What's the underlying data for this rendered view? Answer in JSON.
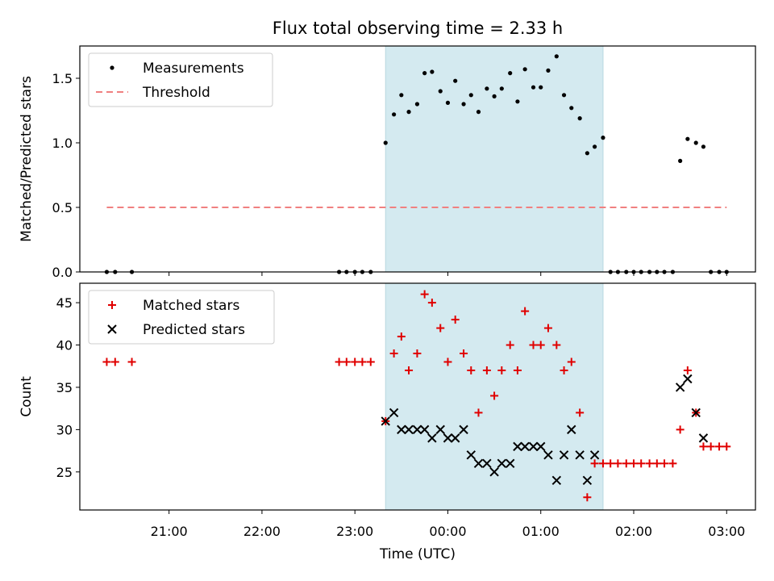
{
  "chart_data": {
    "title": "Flux total observing time = 2.33 h",
    "xlabel": "Time (UTC)",
    "x_ticks": [
      "21:00",
      "22:00",
      "23:00",
      "00:00",
      "01:00",
      "02:00",
      "03:00"
    ],
    "x_tick_hours": [
      21,
      22,
      23,
      24,
      25,
      26,
      27
    ],
    "xlim_hours": [
      20.04,
      27.31
    ],
    "shaded_span_hours": [
      23.33,
      25.67
    ],
    "shade_color": "#d4eaf0",
    "panels": [
      {
        "type": "scatter",
        "ylabel": "Matched/Predicted stars",
        "ylim": [
          0,
          1.75
        ],
        "y_ticks": [
          0.0,
          0.5,
          1.0,
          1.5
        ],
        "y_tick_labels": [
          "0.0",
          "0.5",
          "1.0",
          "1.5"
        ],
        "legend": "top-left",
        "series": [
          {
            "name": "Measurements",
            "marker": "dot",
            "color": "#000000",
            "x": [
              20.33,
              20.42,
              20.6,
              22.83,
              22.91,
              23.0,
              23.08,
              23.17,
              23.33,
              23.42,
              23.5,
              23.58,
              23.67,
              23.75,
              23.83,
              23.92,
              24.0,
              24.08,
              24.17,
              24.25,
              24.33,
              24.42,
              24.5,
              24.58,
              24.67,
              24.75,
              24.83,
              24.92,
              25.0,
              25.08,
              25.17,
              25.25,
              25.33,
              25.42,
              25.5,
              25.58,
              25.67,
              25.75,
              25.83,
              25.92,
              26.0,
              26.08,
              26.17,
              26.25,
              26.33,
              26.42,
              26.5,
              26.58,
              26.67,
              26.75,
              26.83,
              26.92,
              27.0
            ],
            "y": [
              0,
              0,
              0,
              0,
              0,
              0,
              0,
              0,
              1.0,
              1.22,
              1.37,
              1.24,
              1.3,
              1.54,
              1.55,
              1.4,
              1.31,
              1.48,
              1.3,
              1.37,
              1.24,
              1.42,
              1.36,
              1.42,
              1.54,
              1.32,
              1.57,
              1.43,
              1.43,
              1.56,
              1.67,
              1.37,
              1.27,
              1.19,
              0.92,
              0.97,
              1.04,
              0,
              0,
              0,
              0,
              0,
              0,
              0,
              0,
              0,
              0.86,
              1.03,
              1.0,
              0.97,
              0,
              0,
              0
            ]
          },
          {
            "name": "Threshold",
            "type": "line",
            "style": "dashed",
            "color": "#f08080",
            "x": [
              20.33,
              27.0
            ],
            "y": [
              0.5,
              0.5
            ]
          }
        ]
      },
      {
        "type": "scatter",
        "ylabel": "Count",
        "ylim": [
          20.5,
          47.3
        ],
        "y_ticks": [
          25,
          30,
          35,
          40,
          45
        ],
        "y_tick_labels": [
          "25",
          "30",
          "35",
          "40",
          "45"
        ],
        "legend": "top-left",
        "series": [
          {
            "name": "Matched stars",
            "marker": "plus",
            "color": "#e00000",
            "x": [
              20.33,
              20.42,
              20.6,
              22.83,
              22.91,
              23.0,
              23.08,
              23.17,
              23.33,
              23.42,
              23.5,
              23.58,
              23.67,
              23.75,
              23.83,
              23.92,
              24.0,
              24.08,
              24.17,
              24.25,
              24.33,
              24.42,
              24.5,
              24.58,
              24.67,
              24.75,
              24.83,
              24.92,
              25.0,
              25.08,
              25.17,
              25.25,
              25.33,
              25.42,
              25.5,
              25.58,
              25.67,
              25.75,
              25.83,
              25.92,
              26.0,
              26.08,
              26.17,
              26.25,
              26.33,
              26.42,
              26.5,
              26.58,
              26.67,
              26.75,
              26.83,
              26.92,
              27.0
            ],
            "y": [
              38,
              38,
              38,
              38,
              38,
              38,
              38,
              38,
              31,
              39,
              41,
              37,
              39,
              46,
              45,
              42,
              38,
              43,
              39,
              37,
              32,
              37,
              34,
              37,
              40,
              37,
              44,
              40,
              40,
              42,
              40,
              37,
              38,
              32,
              22,
              26,
              26,
              26,
              26,
              26,
              26,
              26,
              26,
              26,
              26,
              26,
              30,
              37,
              32,
              28,
              28,
              28,
              28
            ]
          },
          {
            "name": "Predicted stars",
            "marker": "x",
            "color": "#000000",
            "x": [
              23.33,
              23.42,
              23.5,
              23.58,
              23.67,
              23.75,
              23.83,
              23.92,
              24.0,
              24.08,
              24.17,
              24.25,
              24.33,
              24.42,
              24.5,
              24.58,
              24.67,
              24.75,
              24.83,
              24.92,
              25.0,
              25.08,
              25.17,
              25.25,
              25.33,
              25.42,
              25.5,
              25.58,
              26.5,
              26.58,
              26.67,
              26.75
            ],
            "y": [
              31,
              32,
              30,
              30,
              30,
              30,
              29,
              30,
              29,
              29,
              30,
              27,
              26,
              26,
              25,
              26,
              26,
              28,
              28,
              28,
              28,
              27,
              24,
              27,
              30,
              27,
              24,
              27,
              35,
              36,
              32,
              29
            ]
          }
        ]
      }
    ]
  }
}
